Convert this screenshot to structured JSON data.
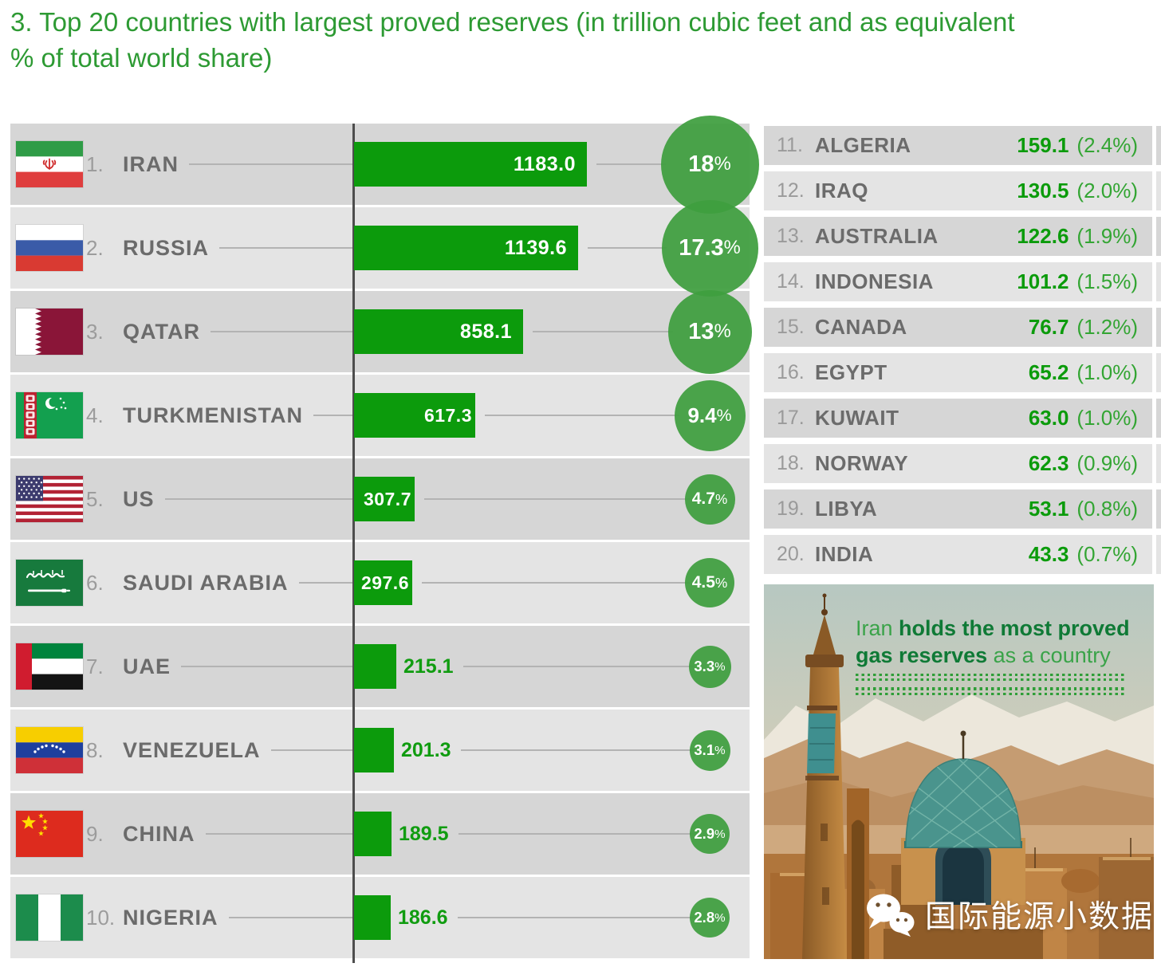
{
  "title": {
    "line1": "3. Top 20 countries with largest proved reserves (in trillion cubic feet and as equivalent",
    "line2": "% of total world share)"
  },
  "colors": {
    "bar_green": "#0c9b0c",
    "bubble_green": "#3e9e3e",
    "title_green": "#2d9a33",
    "row_dark": "#d6d6d6",
    "row_light": "#e4e4e4",
    "name_gray": "#6b6b6b",
    "rank_gray": "#9c9c9c",
    "axis_gray": "#4d4d4d"
  },
  "chart_data": {
    "type": "bar",
    "title": "Top 20 countries with largest proved reserves",
    "unit_value": "trillion cubic feet",
    "unit_share": "% of total world share",
    "xlim": [
      0,
      1200
    ],
    "legend_position": "none",
    "entries": [
      {
        "rank": 1,
        "country": "IRAN",
        "value": 1183.0,
        "share_pct": 18,
        "flag": "iran"
      },
      {
        "rank": 2,
        "country": "RUSSIA",
        "value": 1139.6,
        "share_pct": 17.3,
        "flag": "russia"
      },
      {
        "rank": 3,
        "country": "QATAR",
        "value": 858.1,
        "share_pct": 13,
        "flag": "qatar"
      },
      {
        "rank": 4,
        "country": "TURKMENISTAN",
        "value": 617.3,
        "share_pct": 9.4,
        "flag": "turkmenistan"
      },
      {
        "rank": 5,
        "country": "US",
        "value": 307.7,
        "share_pct": 4.7,
        "flag": "us"
      },
      {
        "rank": 6,
        "country": "SAUDI ARABIA",
        "value": 297.6,
        "share_pct": 4.5,
        "flag": "saudi"
      },
      {
        "rank": 7,
        "country": "UAE",
        "value": 215.1,
        "share_pct": 3.3,
        "flag": "uae"
      },
      {
        "rank": 8,
        "country": "VENEZUELA",
        "value": 201.3,
        "share_pct": 3.1,
        "flag": "venezuela"
      },
      {
        "rank": 9,
        "country": "CHINA",
        "value": 189.5,
        "share_pct": 2.9,
        "flag": "china"
      },
      {
        "rank": 10,
        "country": "NIGERIA",
        "value": 186.6,
        "share_pct": 2.8,
        "flag": "nigeria"
      },
      {
        "rank": 11,
        "country": "ALGERIA",
        "value": 159.1,
        "share_pct": 2.4
      },
      {
        "rank": 12,
        "country": "IRAQ",
        "value": 130.5,
        "share_pct": 2.0
      },
      {
        "rank": 13,
        "country": "AUSTRALIA",
        "value": 122.6,
        "share_pct": 1.9
      },
      {
        "rank": 14,
        "country": "INDONESIA",
        "value": 101.2,
        "share_pct": 1.5
      },
      {
        "rank": 15,
        "country": "CANADA",
        "value": 76.7,
        "share_pct": 1.2
      },
      {
        "rank": 16,
        "country": "EGYPT",
        "value": 65.2,
        "share_pct": 1.0
      },
      {
        "rank": 17,
        "country": "KUWAIT",
        "value": 63.0,
        "share_pct": 1.0
      },
      {
        "rank": 18,
        "country": "NORWAY",
        "value": 62.3,
        "share_pct": 0.9
      },
      {
        "rank": 19,
        "country": "LIBYA",
        "value": 53.1,
        "share_pct": 0.8
      },
      {
        "rank": 20,
        "country": "INDIA",
        "value": 43.3,
        "share_pct": 0.7
      }
    ],
    "annotation": "Iran holds the most proved gas reserves as a country"
  },
  "photo": {
    "caption": {
      "light1": "Iran ",
      "bold1": "holds the most proved",
      "bold2": "gas reserves",
      "light2": " as a country"
    },
    "watermark": "国际能源小数据"
  }
}
